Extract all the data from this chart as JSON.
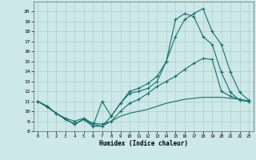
{
  "xlabel": "Humidex (Indice chaleur)",
  "background_color": "#cce8e8",
  "grid_color": "#b0cccc",
  "line_color": "#1a6e6e",
  "xlim": [
    -0.5,
    23.5
  ],
  "ylim": [
    8,
    21
  ],
  "yticks": [
    8,
    9,
    10,
    11,
    12,
    13,
    14,
    15,
    16,
    17,
    18,
    19,
    20
  ],
  "xticks": [
    0,
    1,
    2,
    3,
    4,
    5,
    6,
    7,
    8,
    9,
    10,
    11,
    12,
    13,
    14,
    15,
    16,
    17,
    18,
    19,
    20,
    21,
    22,
    23
  ],
  "line1_x": [
    0,
    1,
    2,
    3,
    4,
    5,
    6,
    7,
    8,
    9,
    10,
    11,
    12,
    13,
    14,
    15,
    16,
    17,
    18,
    19,
    20,
    21,
    22,
    23
  ],
  "line1_y": [
    11.0,
    10.5,
    9.8,
    9.2,
    8.7,
    9.2,
    8.5,
    8.5,
    9.5,
    10.8,
    11.8,
    12.0,
    12.3,
    13.0,
    15.0,
    17.5,
    19.2,
    19.8,
    20.3,
    18.0,
    16.7,
    13.9,
    11.9,
    11.1
  ],
  "line2_x": [
    0,
    1,
    2,
    3,
    4,
    5,
    6,
    7,
    8,
    9,
    10,
    11,
    12,
    13,
    14,
    15,
    16,
    17,
    18,
    19,
    20,
    21,
    22,
    23
  ],
  "line2_y": [
    11.0,
    10.5,
    9.8,
    9.2,
    8.7,
    9.2,
    8.5,
    11.0,
    9.5,
    10.8,
    12.0,
    12.3,
    12.8,
    13.5,
    15.0,
    19.2,
    19.8,
    19.5,
    17.5,
    16.7,
    13.9,
    11.9,
    11.1,
    11.0
  ],
  "line3_x": [
    0,
    1,
    2,
    3,
    4,
    5,
    6,
    7,
    8,
    9,
    10,
    11,
    12,
    13,
    14,
    15,
    16,
    17,
    18,
    19,
    20,
    21,
    22,
    23
  ],
  "line3_y": [
    11.0,
    10.5,
    9.8,
    9.3,
    9.0,
    9.3,
    8.8,
    8.7,
    9.0,
    10.0,
    10.8,
    11.2,
    11.8,
    12.5,
    13.0,
    13.5,
    14.2,
    14.8,
    15.3,
    15.2,
    12.0,
    11.5,
    11.2,
    11.0
  ],
  "line4_x": [
    0,
    1,
    2,
    3,
    4,
    5,
    6,
    7,
    8,
    9,
    10,
    11,
    12,
    13,
    14,
    15,
    16,
    17,
    18,
    19,
    20,
    21,
    22,
    23
  ],
  "line4_y": [
    11.0,
    10.4,
    9.8,
    9.2,
    8.7,
    9.2,
    8.7,
    8.5,
    9.0,
    9.5,
    9.8,
    10.0,
    10.2,
    10.5,
    10.8,
    11.0,
    11.2,
    11.3,
    11.4,
    11.4,
    11.4,
    11.3,
    11.2,
    11.0
  ]
}
